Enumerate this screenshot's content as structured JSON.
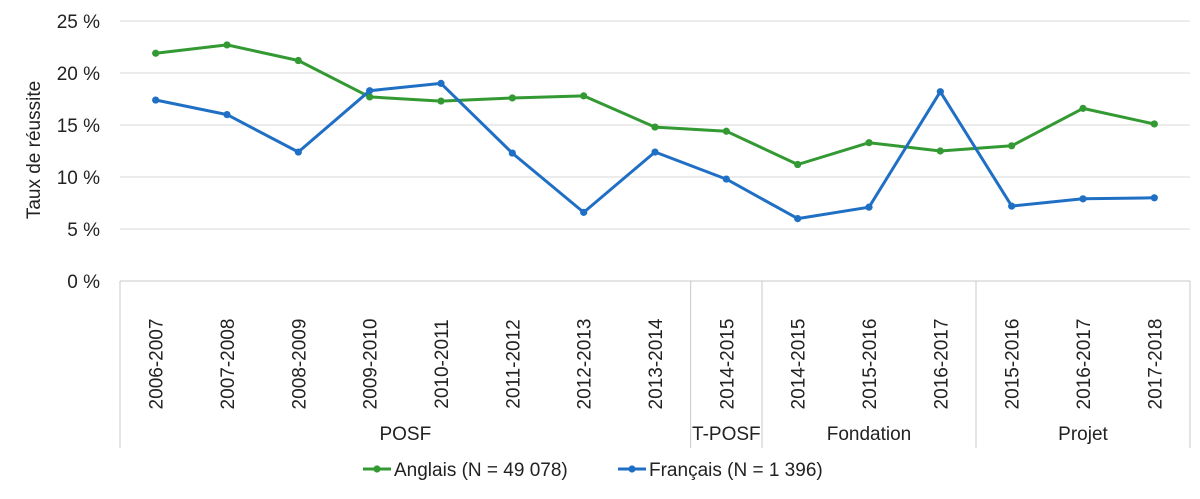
{
  "chart_data": {
    "type": "line",
    "ylabel": "Taux de réussite",
    "ylim": [
      0,
      25
    ],
    "yticks": [
      "0 %",
      "5 %",
      "10 %",
      "15 %",
      "20 %",
      "25 %"
    ],
    "grid": true,
    "legend_position": "bottom",
    "categories": [
      "2006-2007",
      "2007-2008",
      "2008-2009",
      "2009-2010",
      "2010-2011",
      "2011-2012",
      "2012-2013",
      "2013-2014",
      "2014-2015",
      "2014-2015",
      "2015-2016",
      "2016-2017",
      "2015-2016",
      "2016-2017",
      "2017-2018"
    ],
    "groups": [
      {
        "label": "POSF",
        "count": 8
      },
      {
        "label": "T-POSF",
        "count": 1
      },
      {
        "label": "Fondation",
        "count": 3
      },
      {
        "label": "Projet",
        "count": 3
      }
    ],
    "series": [
      {
        "name": "Anglais (N = 49 078)",
        "color": "#339933",
        "values": [
          21.9,
          22.7,
          21.2,
          17.7,
          17.3,
          17.6,
          17.8,
          14.8,
          14.4,
          11.2,
          13.3,
          12.5,
          13.0,
          16.6,
          15.1
        ]
      },
      {
        "name": "Français (N = 1 396)",
        "color": "#1f6fc5",
        "values": [
          17.4,
          16.0,
          12.4,
          18.3,
          19.0,
          12.3,
          6.6,
          12.4,
          9.8,
          6.0,
          7.1,
          18.2,
          7.2,
          7.9,
          8.0
        ]
      }
    ]
  }
}
